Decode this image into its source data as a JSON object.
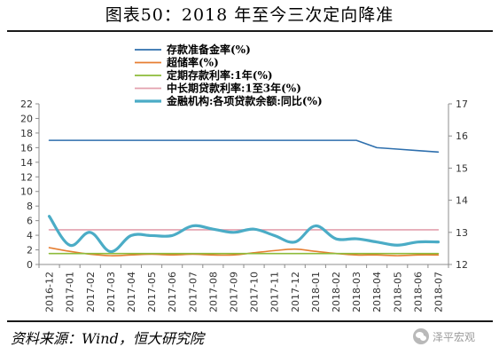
{
  "title": "图表50：2018 年至今三次定向降准",
  "source": "资料来源：Wind，恒大研究院",
  "watermark": "泽平宏观",
  "watermark_icon": "wechat-icon",
  "chart_data": {
    "type": "line",
    "categories": [
      "2016-12",
      "2017-01",
      "2017-02",
      "2017-03",
      "2017-04",
      "2017-05",
      "2017-06",
      "2017-07",
      "2017-08",
      "2017-09",
      "2017-10",
      "2017-11",
      "2017-12",
      "2018-01",
      "2018-02",
      "2018-03",
      "2018-04",
      "2018-05",
      "2018-06",
      "2018-07"
    ],
    "y_left": {
      "min": 0,
      "max": 22,
      "ticks": [
        0,
        2,
        4,
        6,
        8,
        10,
        12,
        14,
        16,
        18,
        20,
        22
      ]
    },
    "y_right": {
      "min": 12,
      "max": 17,
      "ticks": [
        12,
        13,
        14,
        15,
        16,
        17
      ]
    },
    "grid": false,
    "legend_position": "top-left",
    "series": [
      {
        "name": "存款准备金率(%)",
        "axis": "left",
        "color": "#2e6fad",
        "width": 1.6,
        "smooth": false,
        "values": [
          17,
          17,
          17,
          17,
          17,
          17,
          17,
          17,
          17,
          17,
          17,
          17,
          17,
          17,
          17,
          17,
          16,
          15.8,
          15.6,
          15.4
        ]
      },
      {
        "name": "超储率(%)",
        "axis": "left",
        "color": "#e67e32",
        "width": 1.6,
        "smooth": true,
        "values": [
          2.3,
          1.8,
          1.4,
          1.2,
          1.3,
          1.4,
          1.3,
          1.4,
          1.3,
          1.3,
          1.6,
          1.9,
          2.1,
          1.8,
          1.5,
          1.3,
          1.3,
          1.2,
          1.3,
          1.3
        ]
      },
      {
        "name": "定期存款利率:1年(%)",
        "axis": "left",
        "color": "#8dbb3a",
        "width": 1.6,
        "smooth": false,
        "values": [
          1.5,
          1.5,
          1.5,
          1.5,
          1.5,
          1.5,
          1.5,
          1.5,
          1.5,
          1.5,
          1.5,
          1.5,
          1.5,
          1.5,
          1.5,
          1.5,
          1.5,
          1.5,
          1.5,
          1.5
        ]
      },
      {
        "name": "中长期贷款利率:1至3年(%)",
        "axis": "left",
        "color": "#e3a0ae",
        "width": 1.6,
        "smooth": false,
        "values": [
          4.75,
          4.75,
          4.75,
          4.75,
          4.75,
          4.75,
          4.75,
          4.75,
          4.75,
          4.75,
          4.75,
          4.75,
          4.75,
          4.75,
          4.75,
          4.75,
          4.75,
          4.75,
          4.75,
          4.75
        ]
      },
      {
        "name": "金融机构:各项贷款余额:同比(%)",
        "axis": "right",
        "color": "#4bacc6",
        "width": 3.2,
        "smooth": true,
        "values": [
          13.5,
          12.6,
          13,
          12.4,
          12.9,
          12.9,
          12.9,
          13.2,
          13.1,
          13,
          13.1,
          12.9,
          12.7,
          13.2,
          12.8,
          12.8,
          12.7,
          12.6,
          12.7,
          12.7
        ]
      }
    ]
  }
}
